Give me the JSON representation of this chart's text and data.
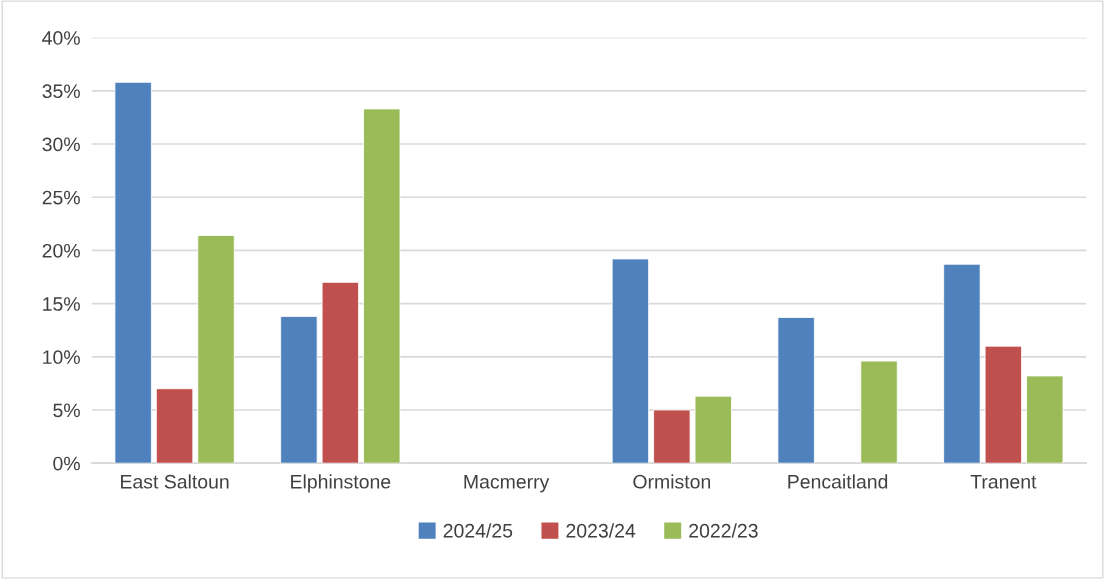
{
  "chart_data": {
    "type": "bar",
    "categories": [
      "East Saltoun",
      "Elphinstone",
      "Macmerry",
      "Ormiston",
      "Pencaitland",
      "Tranent"
    ],
    "series": [
      {
        "name": "2024/25",
        "color": "#4f81bd",
        "values": [
          35.8,
          13.8,
          null,
          19.2,
          13.7,
          18.7
        ]
      },
      {
        "name": "2023/24",
        "color": "#c0504d",
        "values": [
          7.0,
          17.0,
          null,
          5.0,
          null,
          11.0
        ]
      },
      {
        "name": "2022/23",
        "color": "#9bbb59",
        "values": [
          21.4,
          33.3,
          null,
          6.3,
          9.6,
          8.2
        ]
      }
    ],
    "ylim": [
      0,
      40
    ],
    "yticks": [
      {
        "value": 0,
        "label": "0%"
      },
      {
        "value": 5,
        "label": "5%"
      },
      {
        "value": 10,
        "label": "10%"
      },
      {
        "value": 15,
        "label": "15%"
      },
      {
        "value": 20,
        "label": "20%"
      },
      {
        "value": 25,
        "label": "25%"
      },
      {
        "value": 30,
        "label": "30%"
      },
      {
        "value": 35,
        "label": "35%"
      },
      {
        "value": 40,
        "label": "40%"
      }
    ],
    "grid": "y",
    "legend": "bottom"
  }
}
